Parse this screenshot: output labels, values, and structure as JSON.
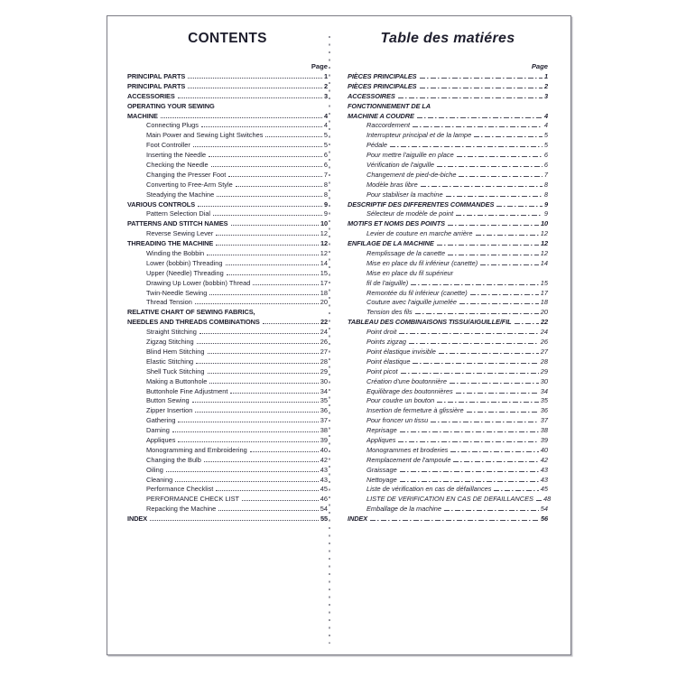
{
  "document": {
    "columns": [
      {
        "id": "en",
        "title": "CONTENTS",
        "page_label": "Page",
        "entries": [
          {
            "label": "PRINCIPAL PARTS",
            "page": "1",
            "bold": true
          },
          {
            "label": "PRINCIPAL PARTS",
            "page": "2",
            "bold": true
          },
          {
            "label": "ACCESSORIES",
            "page": "3",
            "bold": true
          },
          {
            "label": "OPERATING YOUR SEWING",
            "page": "",
            "bold": true
          },
          {
            "label": "MACHINE",
            "page": "4",
            "bold": true
          },
          {
            "label": "Connecting Plugs",
            "page": "4",
            "indent": true
          },
          {
            "label": "Main Power and Sewing Light Switches",
            "page": "5",
            "indent": true
          },
          {
            "label": "Foot Controller",
            "page": "5",
            "indent": true
          },
          {
            "label": "Inserting the Needle",
            "page": "6",
            "indent": true
          },
          {
            "label": "Checking the Needle",
            "page": "6",
            "indent": true
          },
          {
            "label": "Changing the Presser Foot",
            "page": "7",
            "indent": true
          },
          {
            "label": "Converting to Free-Arm Style",
            "page": "8",
            "indent": true
          },
          {
            "label": "Steadying the Machine",
            "page": "8",
            "indent": true
          },
          {
            "label": "VARIOUS CONTROLS",
            "page": "9",
            "bold": true
          },
          {
            "label": "Pattern Selection Dial",
            "page": "9",
            "indent": true
          },
          {
            "label": "PATTERNS AND STITCH NAMES",
            "page": "10",
            "bold": true
          },
          {
            "label": "Reverse Sewing Lever",
            "page": "12",
            "indent": true
          },
          {
            "label": "THREADING THE MACHINE",
            "page": "12",
            "bold": true
          },
          {
            "label": "Winding the Bobbin",
            "page": "12",
            "indent": true
          },
          {
            "label": "Lower (bobbin) Threading",
            "page": "14",
            "indent": true
          },
          {
            "label": "Upper (Needle) Threading",
            "page": "15",
            "indent": true
          },
          {
            "label": "Drawing Up Lower (bobbin) Thread",
            "page": "17",
            "indent": true
          },
          {
            "label": "Twin-Needle Sewing",
            "page": "18",
            "indent": true
          },
          {
            "label": "Thread Tension",
            "page": "20",
            "indent": true
          },
          {
            "label": "RELATIVE CHART OF SEWING FABRICS,",
            "page": "",
            "bold": true
          },
          {
            "label": "NEEDLES AND THREADS COMBINATIONS",
            "page": "22",
            "bold": true
          },
          {
            "label": "Straight Stitching",
            "page": "24",
            "indent": true
          },
          {
            "label": "Zigzag Stitching",
            "page": "26",
            "indent": true
          },
          {
            "label": "Blind Hem Stitching",
            "page": "27",
            "indent": true
          },
          {
            "label": "Elastic Stitching",
            "page": "28",
            "indent": true
          },
          {
            "label": "Shell Tuck Stitching",
            "page": "29",
            "indent": true
          },
          {
            "label": "Making a Buttonhole",
            "page": "30",
            "indent": true
          },
          {
            "label": "Buttonhole Fine Adjustment",
            "page": "34",
            "indent": true
          },
          {
            "label": "Button Sewing",
            "page": "35",
            "indent": true
          },
          {
            "label": "Zipper Insertion",
            "page": "36",
            "indent": true
          },
          {
            "label": "Gathering",
            "page": "37",
            "indent": true
          },
          {
            "label": "Darning",
            "page": "38",
            "indent": true
          },
          {
            "label": "Appliques",
            "page": "39",
            "indent": true
          },
          {
            "label": "Monogramming and Embroidering",
            "page": "40",
            "indent": true
          },
          {
            "label": "Changing the Bulb",
            "page": "42",
            "indent": true
          },
          {
            "label": "Oiling",
            "page": "43",
            "indent": true
          },
          {
            "label": "Cleaning",
            "page": "43",
            "indent": true
          },
          {
            "label": "Performance Checklist",
            "page": "45",
            "indent": true
          },
          {
            "label": "PERFORMANCE CHECK LIST",
            "page": "46",
            "indent": true
          },
          {
            "label": "Repacking the Machine",
            "page": "54",
            "indent": true
          },
          {
            "label": "INDEX",
            "page": "55",
            "bold": true
          }
        ]
      },
      {
        "id": "fr",
        "title": "Table des matiéres",
        "page_label": "Page",
        "entries": [
          {
            "label": "PIÈCES PRINCIPALES",
            "page": "1",
            "bold": true
          },
          {
            "label": "PIÈCES PRINCIPALES",
            "page": "2",
            "bold": true
          },
          {
            "label": "ACCESSOIRES",
            "page": "3",
            "bold": true
          },
          {
            "label": "FONCTIONNEMENT DE LA",
            "page": "",
            "bold": true
          },
          {
            "label": "MACHINE A COUDRE",
            "page": "4",
            "bold": true
          },
          {
            "label": "Raccordement",
            "page": "4",
            "indent": true
          },
          {
            "label": "Interrupteur principal et de la lampe",
            "page": "5",
            "indent": true
          },
          {
            "label": "Pédale",
            "page": "5",
            "indent": true
          },
          {
            "label": "Pour mettre l'aiguille en place",
            "page": "6",
            "indent": true
          },
          {
            "label": "Vérification de l'aiguille",
            "page": "6",
            "indent": true
          },
          {
            "label": "Changement de pied-de-biche",
            "page": "7",
            "indent": true
          },
          {
            "label": "Modèle bras libre",
            "page": "8",
            "indent": true
          },
          {
            "label": "Pour stabiliser la machine",
            "page": "8",
            "indent": true
          },
          {
            "label": "DESCRIPTIF DES DIFFERENTES COMMANDES",
            "page": "9",
            "bold": true
          },
          {
            "label": "Sélecteur de modèle de point",
            "page": "9",
            "indent": true
          },
          {
            "label": "MOTIFS ET NOMS DES POINTS",
            "page": "10",
            "bold": true
          },
          {
            "label": "Levier de couture en marche arrière",
            "page": "12",
            "indent": true
          },
          {
            "label": "ENFILAGE DE LA MACHINE",
            "page": "12",
            "bold": true
          },
          {
            "label": "Remplissage de la canette",
            "page": "12",
            "indent": true
          },
          {
            "label": "Mise en place du fil inférieur (canette)",
            "page": "14",
            "indent": true
          },
          {
            "label": "Mise en place du fil supérieur",
            "page": "",
            "indent": true
          },
          {
            "label": "fil de l'aiguille)",
            "page": "15",
            "indent": true
          },
          {
            "label": "Remontée du fil inférieur (canette)",
            "page": "17",
            "indent": true
          },
          {
            "label": "Couture avec l'aiguille jumelée",
            "page": "18",
            "indent": true
          },
          {
            "label": "Tension des fils",
            "page": "20",
            "indent": true
          },
          {
            "label": "TABLEAU DES COMBINAISONS TISSU/AIGUILLE/FIL",
            "page": "22",
            "bold": true
          },
          {
            "label": "Point droit",
            "page": "24",
            "indent": true
          },
          {
            "label": "Points zigzag",
            "page": "26",
            "indent": true
          },
          {
            "label": "Point élastique invisible",
            "page": "27",
            "indent": true
          },
          {
            "label": "Point élastique",
            "page": "28",
            "indent": true
          },
          {
            "label": "Point picot",
            "page": "29",
            "indent": true
          },
          {
            "label": "Création d'une boutonnière",
            "page": "30",
            "indent": true
          },
          {
            "label": "Equilibrage des boutonnières",
            "page": "34",
            "indent": true
          },
          {
            "label": "Pour coudre un bouton",
            "page": "35",
            "indent": true
          },
          {
            "label": "Insertion de fermeture à glissière",
            "page": "36",
            "indent": true
          },
          {
            "label": "Pour froncer un tissu",
            "page": "37",
            "indent": true
          },
          {
            "label": "Reprisage",
            "page": "38",
            "indent": true
          },
          {
            "label": "Appliques",
            "page": "39",
            "indent": true
          },
          {
            "label": "Monogrammes et broderies",
            "page": "40",
            "indent": true
          },
          {
            "label": "Remplacement de l'ampoule",
            "page": "42",
            "indent": true
          },
          {
            "label": "Graissage",
            "page": "43",
            "indent": true
          },
          {
            "label": "Nettoyage",
            "page": "43",
            "indent": true
          },
          {
            "label": "Liste de vérification en cas de défaillances",
            "page": "45",
            "indent": true
          },
          {
            "label": "LISTE DE VERIFICATION EN CAS DE DEFAILLANCES",
            "page": "48",
            "indent": true
          },
          {
            "label": "Emballage de la machine",
            "page": "54",
            "indent": true
          },
          {
            "label": "INDEX",
            "page": "56",
            "bold": true
          }
        ]
      }
    ]
  },
  "colors": {
    "text": "#1e1e2d",
    "border": "#7b7b84",
    "leader": "#4a4a58",
    "fold_dots": "#97979f"
  }
}
